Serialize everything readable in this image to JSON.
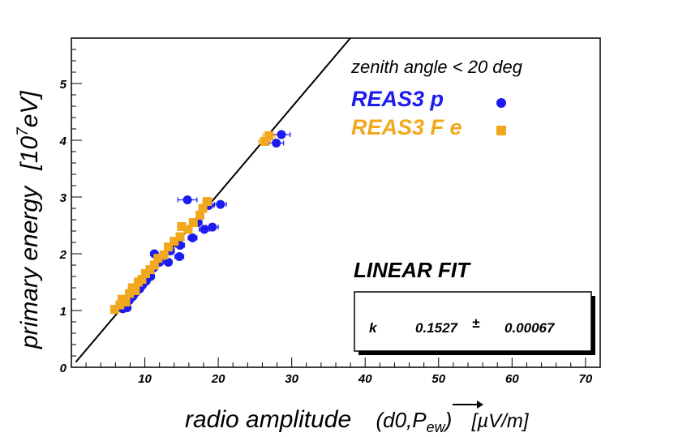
{
  "chart_data": {
    "type": "scatter",
    "title": "",
    "xlabel": "radio amplitude",
    "xlabel_math": "(d0,P",
    "xlabel_sub": "ew",
    "xlabel_close": ")",
    "xlabel_unit": "[µV/m]",
    "ylabel": "primary energy",
    "ylabel_unit": "[10",
    "ylabel_exp": "7",
    "ylabel_unit_end": "eV]",
    "xlim": [
      0,
      72
    ],
    "ylim": [
      0,
      5.8
    ],
    "x_ticks": [
      10,
      20,
      30,
      40,
      50,
      60,
      70
    ],
    "y_ticks": [
      0,
      1,
      2,
      3,
      4,
      5
    ],
    "x_tick_labels": [
      "10",
      "20",
      "30",
      "40",
      "50",
      "60",
      "70"
    ],
    "y_tick_labels": [
      "0",
      "1",
      "2",
      "3",
      "4",
      "5"
    ],
    "annotation": "zenith angle < 20 deg",
    "series": [
      {
        "name": "REAS3  p",
        "marker": "circle",
        "color": "#1c1cf0",
        "points": [
          {
            "x": 7.0,
            "y": 1.03,
            "xerr": 0.3
          },
          {
            "x": 7.6,
            "y": 1.05,
            "xerr": 0.3
          },
          {
            "x": 7.9,
            "y": 1.18,
            "xerr": 0.3
          },
          {
            "x": 8.4,
            "y": 1.25,
            "xerr": 0.3
          },
          {
            "x": 8.8,
            "y": 1.32,
            "xerr": 0.3
          },
          {
            "x": 9.3,
            "y": 1.38,
            "xerr": 0.4
          },
          {
            "x": 9.7,
            "y": 1.45,
            "xerr": 0.4
          },
          {
            "x": 10.2,
            "y": 1.52,
            "xerr": 0.4
          },
          {
            "x": 10.8,
            "y": 1.6,
            "xerr": 0.4
          },
          {
            "x": 11.2,
            "y": 1.75,
            "xerr": 0.4
          },
          {
            "x": 11.3,
            "y": 2.0,
            "xerr": 0.5
          },
          {
            "x": 12.0,
            "y": 1.85,
            "xerr": 0.5
          },
          {
            "x": 13.2,
            "y": 1.85,
            "xerr": 0.5
          },
          {
            "x": 13.5,
            "y": 2.05,
            "xerr": 0.5
          },
          {
            "x": 14.7,
            "y": 1.95,
            "xerr": 0.6
          },
          {
            "x": 14.8,
            "y": 2.15,
            "xerr": 0.6
          },
          {
            "x": 15.8,
            "y": 2.95,
            "xerr": 1.3
          },
          {
            "x": 16.5,
            "y": 2.28,
            "xerr": 0.6
          },
          {
            "x": 17.2,
            "y": 2.55,
            "xerr": 0.6
          },
          {
            "x": 18.1,
            "y": 2.43,
            "xerr": 0.7
          },
          {
            "x": 18.7,
            "y": 2.85,
            "xerr": 0.7
          },
          {
            "x": 19.2,
            "y": 2.47,
            "xerr": 0.8
          },
          {
            "x": 20.3,
            "y": 2.87,
            "xerr": 0.8
          },
          {
            "x": 27.9,
            "y": 3.95,
            "xerr": 1.0
          },
          {
            "x": 28.6,
            "y": 4.1,
            "xerr": 1.2
          }
        ]
      },
      {
        "name": "REAS3 F e",
        "marker": "square",
        "color": "#f2a81d",
        "points": [
          {
            "x": 5.9,
            "y": 1.02,
            "xerr": 0.2
          },
          {
            "x": 6.6,
            "y": 1.1,
            "xerr": 0.2
          },
          {
            "x": 6.9,
            "y": 1.2,
            "xerr": 0.2
          },
          {
            "x": 7.4,
            "y": 1.15,
            "xerr": 0.2
          },
          {
            "x": 7.9,
            "y": 1.3,
            "xerr": 0.3
          },
          {
            "x": 8.3,
            "y": 1.4,
            "xerr": 0.3
          },
          {
            "x": 8.7,
            "y": 1.35,
            "xerr": 0.3
          },
          {
            "x": 9.1,
            "y": 1.5,
            "xerr": 0.3
          },
          {
            "x": 9.6,
            "y": 1.55,
            "xerr": 0.3
          },
          {
            "x": 10.1,
            "y": 1.65,
            "xerr": 0.3
          },
          {
            "x": 10.7,
            "y": 1.72,
            "xerr": 0.3
          },
          {
            "x": 11.3,
            "y": 1.8,
            "xerr": 0.4
          },
          {
            "x": 11.8,
            "y": 1.92,
            "xerr": 0.4
          },
          {
            "x": 12.6,
            "y": 1.98,
            "xerr": 0.4
          },
          {
            "x": 13.2,
            "y": 2.12,
            "xerr": 0.4
          },
          {
            "x": 14.0,
            "y": 2.22,
            "xerr": 0.4
          },
          {
            "x": 14.8,
            "y": 2.3,
            "xerr": 0.4
          },
          {
            "x": 15.0,
            "y": 2.48,
            "xerr": 0.5
          },
          {
            "x": 15.9,
            "y": 2.43,
            "xerr": 0.5
          },
          {
            "x": 16.6,
            "y": 2.55,
            "xerr": 0.5
          },
          {
            "x": 17.5,
            "y": 2.68,
            "xerr": 0.5
          },
          {
            "x": 17.9,
            "y": 2.8,
            "xerr": 0.5
          },
          {
            "x": 18.5,
            "y": 2.92,
            "xerr": 0.6
          },
          {
            "x": 26.3,
            "y": 3.98,
            "xerr": 0.8
          },
          {
            "x": 26.9,
            "y": 4.08,
            "xerr": 0.8
          }
        ]
      }
    ],
    "fit": {
      "type": "linear",
      "title": "LINEAR FIT",
      "param_name": "k",
      "value": "0.1527",
      "pm": "±",
      "error": "0.00067",
      "slope": 0.1527,
      "intercept": 0
    }
  }
}
